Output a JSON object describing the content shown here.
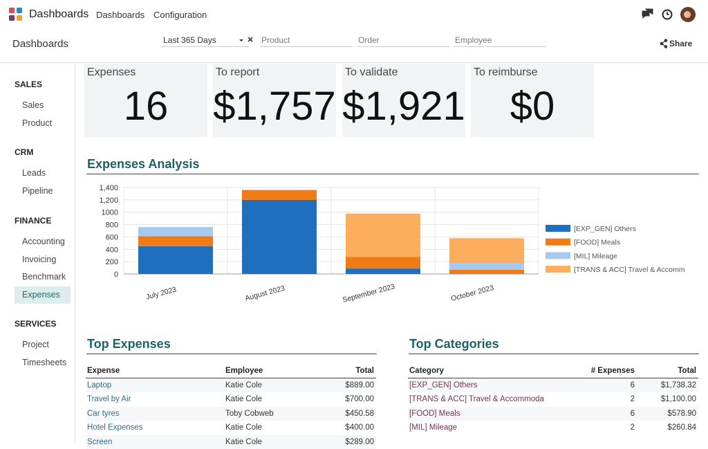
{
  "topbar": {
    "app": "Dashboards",
    "menu": [
      "Dashboards",
      "Configuration"
    ]
  },
  "controlbar": {
    "title": "Dashboards",
    "period": "Last 365 Days",
    "placeholders": [
      "Product",
      "Order",
      "Employee"
    ],
    "share": "Share"
  },
  "sidebar": {
    "active": "Expenses",
    "sections": [
      {
        "title": "SALES",
        "items": [
          "Sales",
          "Product"
        ]
      },
      {
        "title": "CRM",
        "items": [
          "Leads",
          "Pipeline"
        ]
      },
      {
        "title": "FINANCE",
        "items": [
          "Accounting",
          "Invoicing",
          "Benchmark",
          "Expenses"
        ]
      },
      {
        "title": "SERVICES",
        "items": [
          "Project",
          "Timesheets"
        ]
      }
    ]
  },
  "kpis": [
    {
      "label": "Expenses",
      "value": "16"
    },
    {
      "label": "To report",
      "value": "$1,757"
    },
    {
      "label": "To validate",
      "value": "$1,921"
    },
    {
      "label": "To reimburse",
      "value": "$0"
    }
  ],
  "chart_data": {
    "type": "stacked_bar",
    "title": "Expenses Analysis",
    "categories": [
      "July 2023",
      "August 2023",
      "September 2023",
      "October 2023"
    ],
    "series": [
      {
        "name": "[EXP_GEN] Others",
        "color": "#1f6fbf",
        "values": [
          450,
          1200,
          88,
          0
        ]
      },
      {
        "name": "[FOOD] Meals",
        "color": "#f07b16",
        "values": [
          160,
          160,
          190,
          69
        ]
      },
      {
        "name": "[MIL] Mileage",
        "color": "#a7c8ef",
        "values": [
          150,
          0,
          0,
          110
        ]
      },
      {
        "name": "[TRANS & ACC] Travel & Accomm",
        "color": "#fdae5c",
        "values": [
          0,
          0,
          700,
          400
        ]
      }
    ],
    "ylim": [
      0,
      1400
    ],
    "yticks": [
      0,
      200,
      400,
      600,
      800,
      1000,
      {
        "value": 1200,
        "label": "1,200"
      },
      {
        "value": 1400,
        "label": "1,400"
      }
    ],
    "grid": true,
    "legend": "right"
  },
  "top_expenses": {
    "title": "Top Expenses",
    "columns": [
      "Expense",
      "Employee",
      "Total"
    ],
    "rows": [
      [
        "Laptop",
        "Katie Cole",
        "$889.00"
      ],
      [
        "Travel by Air",
        "Katie Cole",
        "$700.00"
      ],
      [
        "Car tyres",
        "Toby Cobweb",
        "$450.58"
      ],
      [
        "Hotel Expenses",
        "Katie Cole",
        "$400.00"
      ],
      [
        "Screen",
        "Katie Cole",
        "$289.00"
      ]
    ]
  },
  "top_categories": {
    "title": "Top Categories",
    "columns": [
      "Category",
      "# Expenses",
      "Total"
    ],
    "rows": [
      [
        "[EXP_GEN] Others",
        "6",
        "$1,738.32"
      ],
      [
        "[TRANS & ACC] Travel & Accommoda",
        "2",
        "$1,100.00"
      ],
      [
        "[FOOD] Meals",
        "6",
        "$578.90"
      ],
      [
        "[MIL] Mileage",
        "2",
        "$260.84"
      ]
    ]
  }
}
